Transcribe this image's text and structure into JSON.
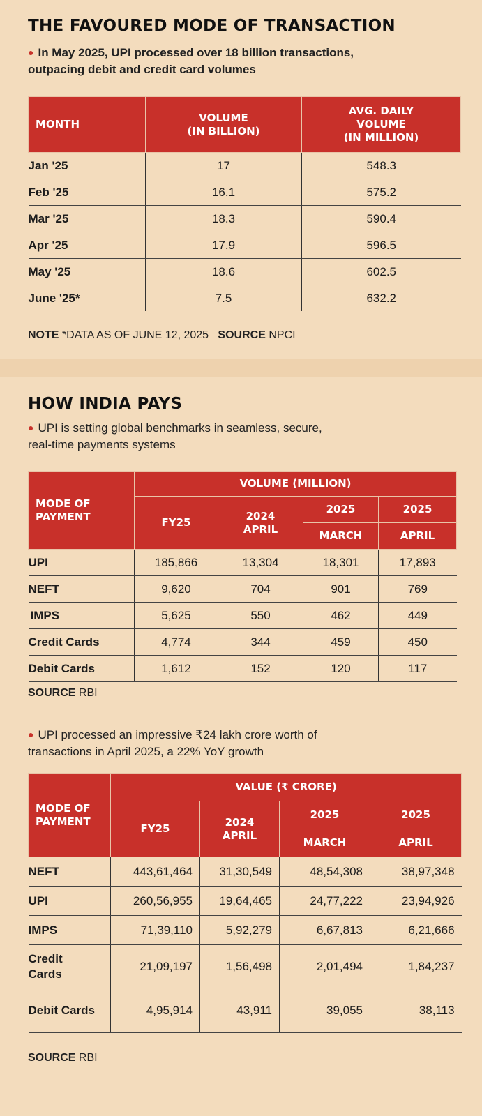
{
  "section1": {
    "title": "THE FAVOURED MODE OF TRANSACTION",
    "bullet_prefix": "In May 2025, UPI processed over 18 billion transactions,",
    "bullet_line2": "outpacing debit and credit card volumes",
    "headers": [
      "MONTH",
      "VOLUME (IN BILLION)",
      "AVG. DAILY VOLUME (IN MILLION)"
    ],
    "header_lines": {
      "vol1": "VOLUME",
      "vol2": "(IN BILLION)",
      "avg1": "AVG. DAILY",
      "avg2": "VOLUME",
      "avg3": "(IN MILLION)"
    },
    "rows": [
      {
        "month": "Jan '25",
        "volume": "17",
        "avg": "548.3"
      },
      {
        "month": "Feb '25",
        "volume": "16.1",
        "avg": "575.2"
      },
      {
        "month": "Mar '25",
        "volume": "18.3",
        "avg": "590.4"
      },
      {
        "month": "Apr '25",
        "volume": "17.9",
        "avg": "596.5"
      },
      {
        "month": "May '25",
        "volume": "18.6",
        "avg": "602.5"
      },
      {
        "month": "June '25*",
        "volume": "7.5",
        "avg": "632.2"
      }
    ],
    "note_label": "NOTE",
    "note_text": "*DATA AS OF JUNE 12, 2025",
    "source_label": "SOURCE",
    "source_text": "NPCI"
  },
  "section2": {
    "title": "HOW INDIA PAYS",
    "bullet_line1": "UPI is setting global benchmarks in seamless, secure,",
    "bullet_line2": "real-time payments systems",
    "mode_header_1": "MODE OF",
    "mode_header_2": "PAYMENT",
    "group_header": "VOLUME (MILLION)",
    "col_fy25": "FY25",
    "col_2024_1": "2024",
    "col_2024_2": "APRIL",
    "col_2025": "2025",
    "col_march": "MARCH",
    "col_april": "APRIL",
    "rows": [
      {
        "mode": "UPI",
        "fy25": "185,866",
        "apr24": "13,304",
        "mar25": "18,301",
        "apr25": "17,893"
      },
      {
        "mode": "NEFT",
        "fy25": "9,620",
        "apr24": "704",
        "mar25": "901",
        "apr25": "769"
      },
      {
        "mode": "IMPS",
        "fy25": "5,625",
        "apr24": "550",
        "mar25": "462",
        "apr25": "449"
      },
      {
        "mode": "Credit Cards",
        "fy25": "4,774",
        "apr24": "344",
        "mar25": "459",
        "apr25": "450"
      },
      {
        "mode": "Debit Cards",
        "fy25": "1,612",
        "apr24": "152",
        "mar25": "120",
        "apr25": "117"
      }
    ],
    "source_label": "SOURCE",
    "source_text": "RBI"
  },
  "section3": {
    "bullet_line1": "UPI processed an impressive ₹24 lakh crore worth of",
    "bullet_line2": "transactions in April 2025, a 22% YoY growth",
    "mode_header_1": "MODE OF",
    "mode_header_2": "PAYMENT",
    "group_header": "VALUE (₹ CRORE)",
    "col_fy25": "FY25",
    "col_2024_1": "2024",
    "col_2024_2": "APRIL",
    "col_2025": "2025",
    "col_march": "MARCH",
    "col_april": "APRIL",
    "rows": [
      {
        "mode": "NEFT",
        "fy25": "443,61,464",
        "apr24": "31,30,549",
        "mar25": "48,54,308",
        "apr25": "38,97,348"
      },
      {
        "mode": "UPI",
        "fy25": "260,56,955",
        "apr24": "19,64,465",
        "mar25": "24,77,222",
        "apr25": "23,94,926"
      },
      {
        "mode": "IMPS",
        "fy25": "71,39,110",
        "apr24": "5,92,279",
        "mar25": "6,67,813",
        "apr25": "6,21,666"
      },
      {
        "mode1": "Credit",
        "mode2": "Cards",
        "fy25": "21,09,197",
        "apr24": "1,56,498",
        "mar25": "2,01,494",
        "apr25": "1,84,237"
      },
      {
        "mode": "Debit Cards",
        "fy25": "4,95,914",
        "apr24": "43,911",
        "mar25": "39,055",
        "apr25": "38,113"
      }
    ],
    "source_label": "SOURCE",
    "source_text": "RBI"
  },
  "colors": {
    "accent": "#c8302a",
    "background": "#f3dcbd",
    "divider": "#eed2ae"
  }
}
